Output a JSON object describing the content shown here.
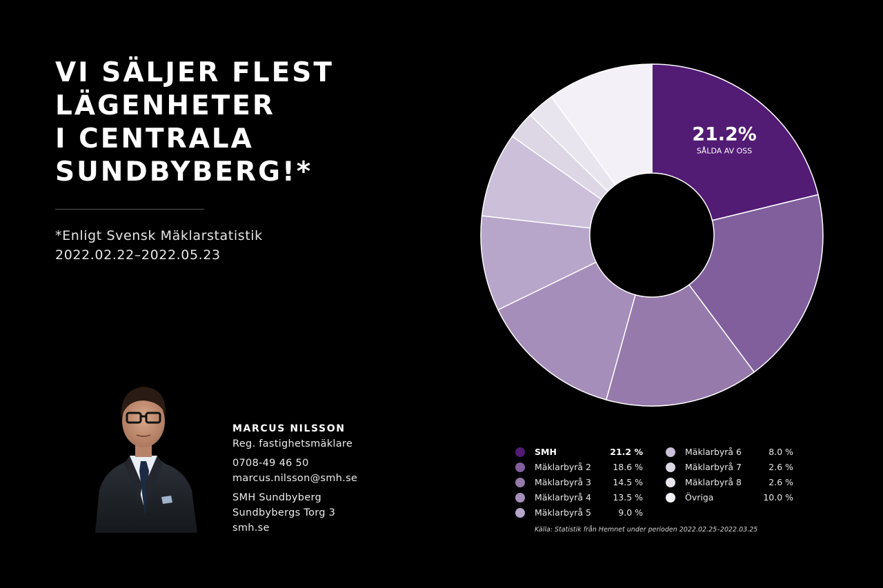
{
  "headline": [
    "VI SÄLJER FLEST",
    "LÄGENHETER",
    "I CENTRALA",
    "SUNDBYBERG!*"
  ],
  "source_note": [
    "*Enligt Svensk Mäklarstatistik",
    "2022.02.22–2022.05.23"
  ],
  "contact": {
    "name": "MARCUS NILSSON",
    "title": "Reg. fastighetsmäklare",
    "phone": "0708-49 46 50",
    "email": "marcus.nilsson@smh.se",
    "office": "SMH Sundbyberg",
    "address": "Sundbybergs Torg 3",
    "website": "smh.se"
  },
  "chart_data": {
    "type": "pie",
    "donut": true,
    "callout": {
      "value": "21.2%",
      "label": "SÅLDA AV OSS"
    },
    "series": [
      {
        "name": "SMH",
        "value": 21.2,
        "display": "21.2 %",
        "color": "#521b74"
      },
      {
        "name": "Mäklarbyrå 2",
        "value": 18.6,
        "display": "18.6 %",
        "color": "#815f9d"
      },
      {
        "name": "Mäklarbyrå 3",
        "value": 14.5,
        "display": "14.5 %",
        "color": "#967aab"
      },
      {
        "name": "Mäklarbyrå 4",
        "value": 13.5,
        "display": "13.5 %",
        "color": "#a68eba"
      },
      {
        "name": "Mäklarbyrå 5",
        "value": 9.0,
        "display": "9.0 %",
        "color": "#b7a5ca"
      },
      {
        "name": "Mäklarbyrå 6",
        "value": 8.0,
        "display": "8.0 %",
        "color": "#cbbfda"
      },
      {
        "name": "Mäklarbyrå 7",
        "value": 2.6,
        "display": "2.6 %",
        "color": "#dcd6e5"
      },
      {
        "name": "Mäklarbyrå 8",
        "value": 2.6,
        "display": "2.6 %",
        "color": "#e9e5ef"
      },
      {
        "name": "Övriga",
        "value": 10.0,
        "display": "10.0 %",
        "color": "#f3f1f7"
      }
    ],
    "legend_placement": "bottom"
  },
  "footnote": "Källa: Statistik från Hemnet under perioden 2022.02.25–2022.03.25"
}
